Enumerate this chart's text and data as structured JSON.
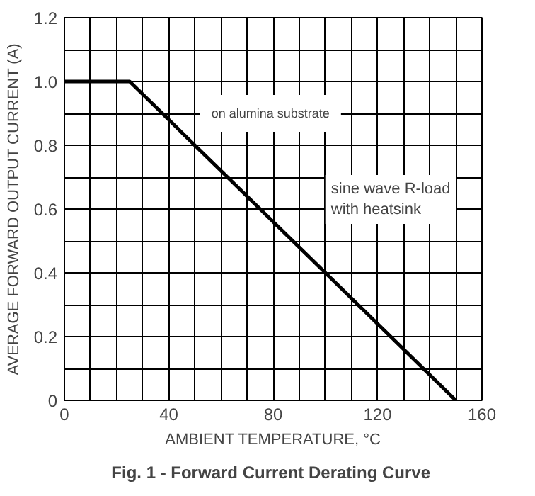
{
  "chart_data": {
    "type": "line",
    "title": "Fig. 1 -  Forward Current Derating Curve",
    "xlabel": "AMBIENT TEMPERATURE, °C",
    "ylabel": "AVERAGE FORWARD OUTPUT CURRENT (A)",
    "x": [
      0,
      25,
      150
    ],
    "series": [
      {
        "color": "#000000",
        "values": [
          1.0,
          1.0,
          0
        ]
      }
    ],
    "xlim": [
      0,
      160
    ],
    "ylim": [
      0,
      1.2
    ],
    "xticks": [
      0,
      {
        "value": 10,
        "label": null
      },
      {
        "value": 20,
        "label": null
      },
      {
        "value": 30,
        "label": null
      },
      40,
      {
        "value": 50,
        "label": null
      },
      {
        "value": 60,
        "label": null
      },
      {
        "value": 70,
        "label": null
      },
      80,
      {
        "value": 90,
        "label": null
      },
      {
        "value": 100,
        "label": null
      },
      {
        "value": 110,
        "label": null
      },
      120,
      {
        "value": 130,
        "label": null
      },
      {
        "value": 140,
        "label": null
      },
      {
        "value": 150,
        "label": null
      },
      160
    ],
    "yticks": [
      0,
      {
        "value": 0.1,
        "label": null
      },
      0.2,
      {
        "value": 0.3,
        "label": null
      },
      0.4,
      {
        "value": 0.5,
        "label": null
      },
      0.6,
      {
        "value": 0.7,
        "label": null
      },
      0.8,
      {
        "value": 0.9,
        "label": null
      },
      {
        "value": 1.0,
        "label": "1.0"
      },
      {
        "value": 1.1,
        "label": null
      },
      1.2
    ],
    "grid": true,
    "marker": "none",
    "line_style": "solid",
    "annotations": [
      "on alumina substrate",
      "sine wave R-load\nwith heatsink"
    ]
  }
}
